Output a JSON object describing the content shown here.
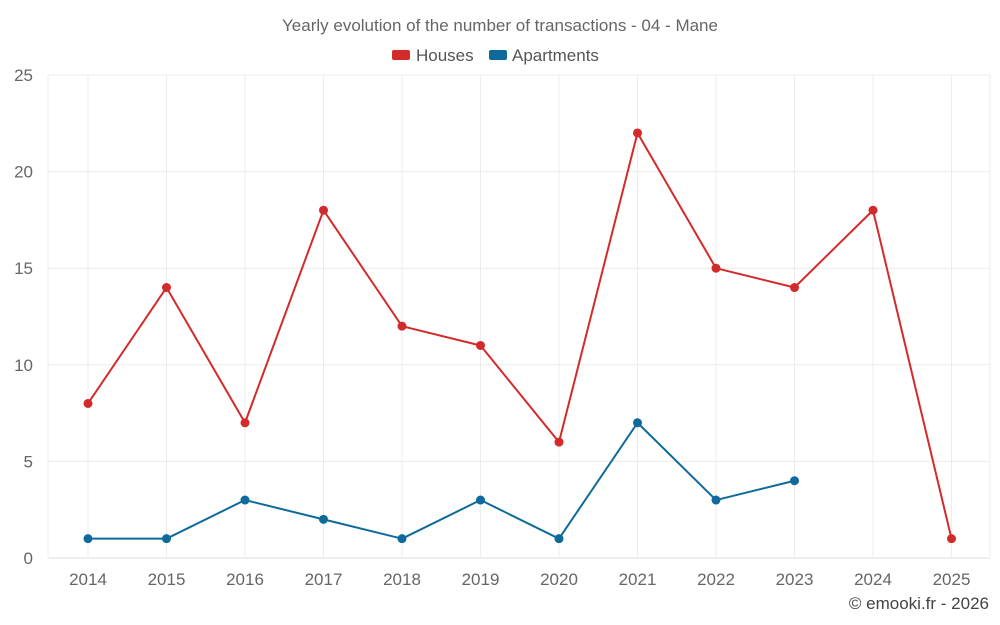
{
  "chart_data": {
    "type": "line",
    "title": "Yearly evolution of the number of transactions - 04 - Mane",
    "categories": [
      "2014",
      "2015",
      "2016",
      "2017",
      "2018",
      "2019",
      "2020",
      "2021",
      "2022",
      "2023",
      "2024",
      "2025"
    ],
    "ylim": [
      0,
      25
    ],
    "yticks": [
      0,
      5,
      10,
      15,
      20,
      25
    ],
    "ytick_labels": [
      "0",
      "5",
      "10",
      "15",
      "20",
      "25"
    ],
    "grid": true,
    "legend_position": "top-center",
    "series": [
      {
        "name": "Houses",
        "color": "#d32a2a",
        "values": [
          8,
          14,
          7,
          18,
          12,
          11,
          6,
          22,
          15,
          14,
          18,
          1
        ]
      },
      {
        "name": "Apartments",
        "color": "#0f6a9c",
        "values": [
          1,
          1,
          3,
          2,
          1,
          3,
          1,
          7,
          3,
          4,
          null,
          null
        ]
      }
    ],
    "credit": "© emooki.fr - 2026"
  }
}
